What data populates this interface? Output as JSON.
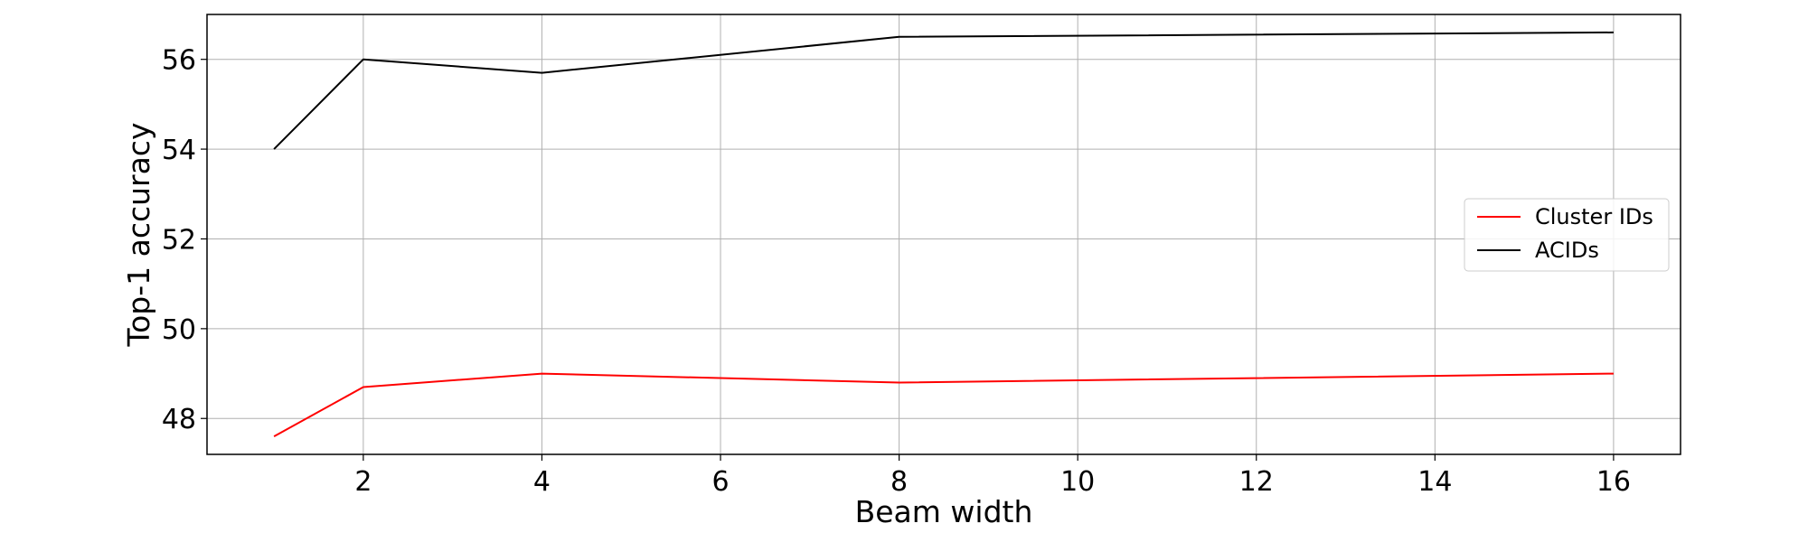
{
  "chart_data": {
    "type": "line",
    "title": "",
    "xlabel": "Beam width",
    "ylabel": "Top-1 accuracy",
    "x": [
      1,
      2,
      4,
      8,
      16
    ],
    "series": [
      {
        "name": "Cluster IDs",
        "color": "#ff0000",
        "values": [
          47.6,
          48.7,
          49.0,
          48.8,
          49.0
        ]
      },
      {
        "name": "ACIDs",
        "color": "#000000",
        "values": [
          54.0,
          56.0,
          55.7,
          56.5,
          56.6
        ]
      }
    ],
    "xticks": [
      2,
      4,
      6,
      8,
      10,
      12,
      14,
      16
    ],
    "yticks": [
      48,
      50,
      52,
      54,
      56
    ],
    "xlim": [
      0.25,
      16.75
    ],
    "ylim": [
      47.2,
      57.0
    ],
    "grid": true,
    "legend_position": "center-right"
  }
}
